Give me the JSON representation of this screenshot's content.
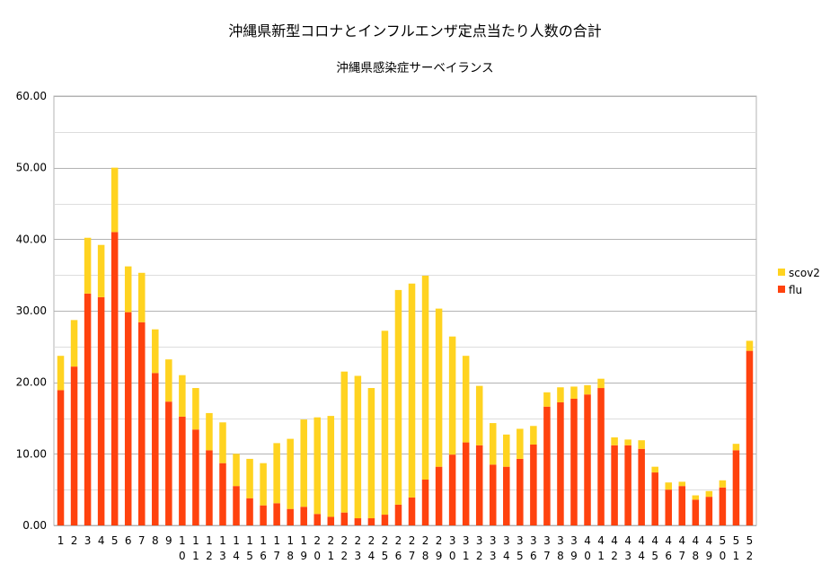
{
  "chart_data": {
    "type": "bar",
    "stacked": true,
    "title": "沖縄県新型コロナとインフルエンザ定点当たり人数の合計",
    "subtitle": "沖縄県感染症サーベイランス",
    "xlabel": "",
    "ylabel": "",
    "ylim": [
      0,
      60
    ],
    "yticks": [
      "0.00",
      "10.00",
      "20.00",
      "30.00",
      "40.00",
      "50.00",
      "60.00"
    ],
    "grid": true,
    "legend_position": "right",
    "categories": [
      "1",
      "2",
      "3",
      "4",
      "5",
      "6",
      "7",
      "8",
      "9",
      "10",
      "11",
      "12",
      "13",
      "14",
      "15",
      "16",
      "17",
      "18",
      "19",
      "20",
      "21",
      "22",
      "23",
      "24",
      "25",
      "26",
      "27",
      "28",
      "29",
      "30",
      "31",
      "32",
      "33",
      "34",
      "35",
      "36",
      "37",
      "38",
      "39",
      "40",
      "41",
      "42",
      "43",
      "44",
      "45",
      "46",
      "47",
      "48",
      "49",
      "50",
      "51",
      "52"
    ],
    "series": [
      {
        "name": "flu",
        "color": "#ff420e",
        "values": [
          18.9,
          22.2,
          32.4,
          31.9,
          41.0,
          29.8,
          28.4,
          21.3,
          17.3,
          15.2,
          13.4,
          10.5,
          8.7,
          5.5,
          3.8,
          2.8,
          3.1,
          2.3,
          2.6,
          1.6,
          1.2,
          1.8,
          1.0,
          1.0,
          1.5,
          2.9,
          3.9,
          6.4,
          8.2,
          9.9,
          11.6,
          11.2,
          8.5,
          8.2,
          9.3,
          11.3,
          16.6,
          17.2,
          17.7,
          18.3,
          19.2,
          11.2,
          11.2,
          10.7,
          7.4,
          5.0,
          5.5,
          3.6,
          4.0,
          5.3,
          10.5,
          24.4
        ]
      },
      {
        "name": "scov2",
        "color": "#ffd320",
        "values": [
          4.8,
          6.5,
          7.8,
          7.3,
          9.0,
          6.4,
          6.9,
          6.1,
          5.9,
          5.8,
          5.8,
          5.2,
          5.7,
          4.5,
          5.5,
          5.9,
          8.4,
          9.8,
          12.2,
          13.5,
          14.1,
          19.7,
          19.9,
          18.2,
          25.7,
          30.0,
          29.9,
          28.5,
          22.1,
          16.5,
          12.1,
          8.3,
          5.8,
          4.5,
          4.2,
          2.6,
          2.0,
          2.1,
          1.7,
          1.3,
          1.3,
          1.1,
          0.8,
          1.2,
          0.8,
          1.0,
          0.6,
          0.6,
          0.8,
          1.0,
          0.9,
          1.4
        ]
      }
    ]
  }
}
